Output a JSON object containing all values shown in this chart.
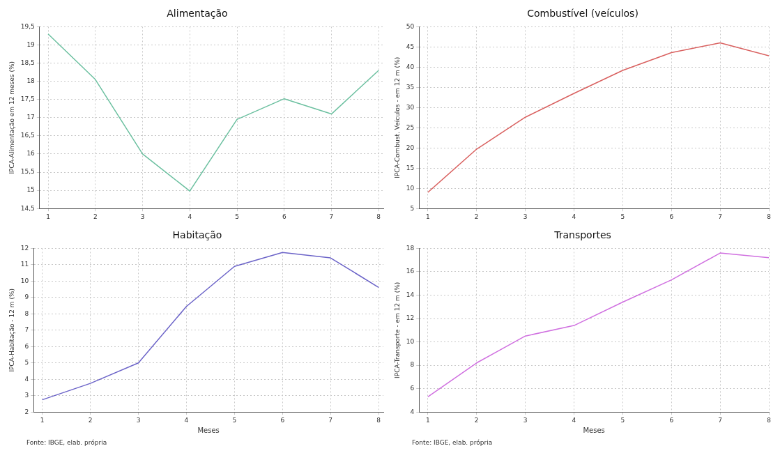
{
  "chart_data": [
    {
      "type": "line",
      "title": "Alimentação",
      "ylabel": "IPCA-Alimentação em 12 meses (%)",
      "x": [
        1,
        2,
        3,
        4,
        5,
        6,
        7,
        8
      ],
      "series": [
        {
          "color": "#6cc0a0",
          "values": [
            19.3,
            18.05,
            16.0,
            14.98,
            16.95,
            17.52,
            17.1,
            18.3
          ]
        }
      ],
      "xlim": [
        0.82,
        8.1
      ],
      "xticks": [
        1,
        2,
        3,
        4,
        5,
        6,
        7,
        8
      ],
      "ylim": [
        14.5,
        19.5
      ],
      "yticks": [
        {
          "value": 14.5,
          "label": "14,5"
        },
        15,
        {
          "value": 15.5,
          "label": "15,5"
        },
        16,
        {
          "value": 16.5,
          "label": "16,5"
        },
        17,
        {
          "value": 17.5,
          "label": "17,5"
        },
        18,
        {
          "value": 18.5,
          "label": "18,5"
        },
        19,
        {
          "value": 19.5,
          "label": "19,5"
        }
      ],
      "grid": true,
      "legend": false
    },
    {
      "type": "line",
      "title": "Combustível (veículos)",
      "ylabel": "IPCA-Combust. Veículos - em 12 m (%)",
      "x": [
        1,
        2,
        3,
        4,
        5,
        6,
        7,
        8
      ],
      "series": [
        {
          "color": "#d9605f",
          "values": [
            9,
            19.7,
            27.6,
            33.5,
            39.2,
            43.6,
            46,
            42.8
          ]
        }
      ],
      "xlim": [
        0.82,
        8.0
      ],
      "xticks": [
        1,
        2,
        3,
        4,
        5,
        6,
        7,
        8
      ],
      "ylim": [
        5,
        50
      ],
      "yticks": [
        5,
        10,
        15,
        20,
        25,
        30,
        35,
        40,
        45,
        50
      ],
      "grid": true,
      "legend": false
    },
    {
      "type": "line",
      "title": "Habitação",
      "xlabel": "Meses",
      "ylabel": "IPCA-Habitação - 12 m (%)",
      "annotations": [
        "Fonte: IBGE, elab. própria"
      ],
      "x": [
        1,
        2,
        3,
        4,
        5,
        6,
        7,
        8
      ],
      "series": [
        {
          "color": "#6b63c8",
          "values": [
            2.75,
            3.75,
            5.0,
            8.45,
            10.9,
            11.75,
            11.42,
            9.62
          ]
        }
      ],
      "xlim": [
        0.82,
        8.1
      ],
      "xticks": [
        1,
        2,
        3,
        4,
        5,
        6,
        7,
        8
      ],
      "ylim": [
        2,
        12
      ],
      "yticks": [
        2,
        3,
        4,
        5,
        6,
        7,
        8,
        9,
        10,
        11,
        12
      ],
      "grid": true,
      "legend": false
    },
    {
      "type": "line",
      "title": "Transportes",
      "xlabel": "Meses",
      "ylabel": "IPCA-Transporte - em 12 m (%)",
      "annotations": [
        "Fonte: IBGE, elab. própria"
      ],
      "x": [
        1,
        2,
        3,
        4,
        5,
        6,
        7,
        8
      ],
      "series": [
        {
          "color": "#d070e0",
          "values": [
            5.3,
            8.2,
            10.5,
            11.4,
            13.4,
            15.3,
            17.6,
            17.2
          ]
        }
      ],
      "xlim": [
        0.82,
        8.0
      ],
      "xticks": [
        1,
        2,
        3,
        4,
        5,
        6,
        7,
        8
      ],
      "ylim": [
        4,
        18
      ],
      "yticks": [
        4,
        6,
        8,
        10,
        12,
        14,
        16,
        18
      ],
      "grid": true,
      "legend": false
    }
  ]
}
